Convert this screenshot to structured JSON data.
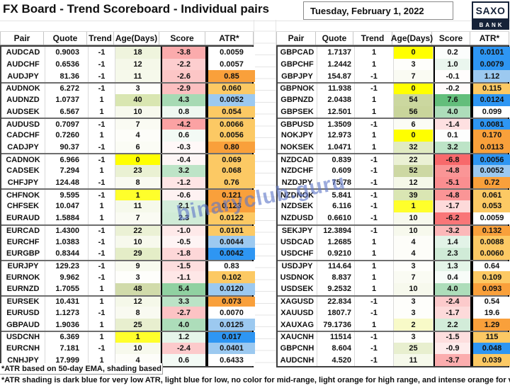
{
  "header": {
    "title": "FX Board - Trend Scoreboard - Individual pairs",
    "date": "Tuesday, February 1, 2022",
    "logo_top": "SAXO",
    "logo_bottom": "BANK"
  },
  "columns": [
    "Pair",
    "Quote",
    "Trend",
    "Age(Days)",
    "Score",
    "ATR*"
  ],
  "footnotes": {
    "line1": "*ATR based on 50-day EMA, shading based on co",
    "line2": "*ATR shading is dark blue for very low ATR, light blue for low, no color for mid-range, light orange for high range, and intense orange for very high"
  },
  "watermark": {
    "text": "binaryclub.guru",
    "color": "rgba(95,120,200,0.62)"
  },
  "colors": {
    "age_new_yellow": "#FFFF00",
    "atr_dark_blue": "#2E96F3",
    "atr_light_blue": "#9CC9F0",
    "atr_light_orange": "#FCC964",
    "atr_intense_orange": "#F9A03B",
    "score_strong_red": "#F8696B",
    "score_strong_green": "#63BE7B",
    "logo_navy": "#152238"
  },
  "tables": {
    "left": {
      "rows": [
        {
          "pair": "AUDCAD",
          "quote": "0.9003",
          "trend": "-1",
          "age": "18",
          "score": "-3.8",
          "atr": "0.0059",
          "age_bg": "#EFF4DD",
          "score_bg": "#FBABAC",
          "atr_bg": "#FFFFFF"
        },
        {
          "pair": "AUDCHF",
          "quote": "0.6536",
          "trend": "-1",
          "age": "12",
          "score": "-2.2",
          "atr": "0.0057",
          "age_bg": "#F5F8E9",
          "score_bg": "#FDCECF",
          "atr_bg": "#FFFFFF"
        },
        {
          "pair": "AUDJPY",
          "quote": "81.36",
          "trend": "-1",
          "age": "11",
          "score": "-2.6",
          "atr": "0.85",
          "age_bg": "#F6F9EB",
          "score_bg": "#FCC6C6",
          "atr_bg": "#F9A03B"
        },
        {
          "pair": "AUDNOK",
          "quote": "6.272",
          "trend": "-1",
          "age": "3",
          "score": "-2.9",
          "atr": "0.060",
          "age_bg": "#FEFEFB",
          "score_bg": "#FCBFC0",
          "atr_bg": "#FCC964"
        },
        {
          "pair": "AUDNZD",
          "quote": "1.0737",
          "trend": "1",
          "age": "40",
          "score": "4.3",
          "atr": "0.0052",
          "age_bg": "#D9E6B1",
          "score_bg": "#A7DAB4",
          "atr_bg": "#9CC9F0"
        },
        {
          "pair": "AUDSEK",
          "quote": "6.567",
          "trend": "1",
          "age": "10",
          "score": "0.8",
          "atr": "0.054",
          "age_bg": "#F7F9ED",
          "score_bg": "#EFF8F1",
          "atr_bg": "#FCC964"
        },
        {
          "pair": "AUDUSD",
          "quote": "0.7097",
          "trend": "-1",
          "age": "7",
          "score": "-4.2",
          "atr": "0.0066",
          "age_bg": "#FAFBF3",
          "score_bg": "#FBA2A3",
          "atr_bg": "#FCC964"
        },
        {
          "pair": "CADCHF",
          "quote": "0.7260",
          "trend": "1",
          "age": "4",
          "score": "0.6",
          "atr": "0.0056",
          "age_bg": "#FDFDF9",
          "score_bg": "#F3FAF5",
          "atr_bg": "#FCC964"
        },
        {
          "pair": "CADJPY",
          "quote": "90.37",
          "trend": "-1",
          "age": "6",
          "score": "-0.3",
          "atr": "0.80",
          "age_bg": "#FBFCF5",
          "score_bg": "#FFF8F8",
          "atr_bg": "#F9A03B"
        },
        {
          "pair": "CADNOK",
          "quote": "6.966",
          "trend": "-1",
          "age": "0",
          "score": "-0.4",
          "atr": "0.069",
          "age_bg": "#FFFF00",
          "score_bg": "#FEF6F6",
          "atr_bg": "#FCC964"
        },
        {
          "pair": "CADSEK",
          "quote": "7.294",
          "trend": "1",
          "age": "23",
          "score": "3.2",
          "atr": "0.068",
          "age_bg": "#EAF1D3",
          "score_bg": "#BDE4C7",
          "atr_bg": "#FCC964"
        },
        {
          "pair": "CHFJPY",
          "quote": "124.48",
          "trend": "-1",
          "age": "8",
          "score": "-1.2",
          "atr": "0.76",
          "age_bg": "#F9FAF1",
          "score_bg": "#FEE5E5",
          "atr_bg": "#FCC964"
        },
        {
          "pair": "CHFNOK",
          "quote": "9.595",
          "trend": "-1",
          "age": "1",
          "score": "-0.6",
          "atr": "0.121",
          "age_bg": "#FFFF2B",
          "score_bg": "#FEF2F2",
          "atr_bg": "#F9A03B"
        },
        {
          "pair": "CHFSEK",
          "quote": "10.047",
          "trend": "1",
          "age": "11",
          "score": "2.1",
          "atr": "0.123",
          "age_bg": "#F6F9EB",
          "score_bg": "#D4EDDB",
          "atr_bg": "#F9A03B"
        },
        {
          "pair": "EURAUD",
          "quote": "1.5884",
          "trend": "1",
          "age": "7",
          "score": "2.3",
          "atr": "0.0122",
          "age_bg": "#FAFBF3",
          "score_bg": "#D0EBD7",
          "atr_bg": "#FCC964"
        },
        {
          "pair": "EURCAD",
          "quote": "1.4300",
          "trend": "-1",
          "age": "22",
          "score": "-1.0",
          "atr": "0.0101",
          "age_bg": "#EBF1D5",
          "score_bg": "#FEE9E9",
          "atr_bg": "#FCC964"
        },
        {
          "pair": "EURCHF",
          "quote": "1.0383",
          "trend": "-1",
          "age": "10",
          "score": "-0.5",
          "atr": "0.0044",
          "age_bg": "#F7F9ED",
          "score_bg": "#FEF4F4",
          "atr_bg": "#9CC9F0"
        },
        {
          "pair": "EURGBP",
          "quote": "0.8344",
          "trend": "-1",
          "age": "29",
          "score": "-1.8",
          "atr": "0.0042",
          "age_bg": "#E4EDC7",
          "score_bg": "#FDD7D8",
          "atr_bg": "#2E96F3"
        },
        {
          "pair": "EURJPY",
          "quote": "129.23",
          "trend": "-1",
          "age": "9",
          "score": "-1.5",
          "atr": "0.83",
          "age_bg": "#F8FAEF",
          "score_bg": "#FDDEDE",
          "atr_bg": "#FFFFFF"
        },
        {
          "pair": "EURNOK",
          "quote": "9.962",
          "trend": "-1",
          "age": "3",
          "score": "-1.1",
          "atr": "0.102",
          "age_bg": "#FEFEFB",
          "score_bg": "#FEE7E7",
          "atr_bg": "#FCC964"
        },
        {
          "pair": "EURNZD",
          "quote": "1.7055",
          "trend": "1",
          "age": "48",
          "score": "5.4",
          "atr": "0.0120",
          "age_bg": "#D1DBAA",
          "score_bg": "#90D1A1",
          "atr_bg": "#9CC9F0"
        },
        {
          "pair": "EURSEK",
          "quote": "10.431",
          "trend": "1",
          "age": "12",
          "score": "3.3",
          "atr": "0.073",
          "age_bg": "#F5F8E9",
          "score_bg": "#BBE3C6",
          "atr_bg": "#F9A03B"
        },
        {
          "pair": "EURUSD",
          "quote": "1.1273",
          "trend": "-1",
          "age": "8",
          "score": "-2.7",
          "atr": "0.0070",
          "age_bg": "#F9FAF1",
          "score_bg": "#FCC3C4",
          "atr_bg": "#FFFFFF"
        },
        {
          "pair": "GBPAUD",
          "quote": "1.9036",
          "trend": "1",
          "age": "25",
          "score": "4.0",
          "atr": "0.0125",
          "age_bg": "#E8EFCF",
          "score_bg": "#ADDDBA",
          "atr_bg": "#9CC9F0"
        },
        {
          "pair": "USDCNH",
          "quote": "6.369",
          "trend": "1",
          "age": "1",
          "score": "1.2",
          "atr": "0.017",
          "age_bg": "#FFFF2B",
          "score_bg": "#E6F5EA",
          "atr_bg": "#2E96F3"
        },
        {
          "pair": "EURCNH",
          "quote": "7.181",
          "trend": "-1",
          "age": "10",
          "score": "-2.4",
          "atr": "0.0401",
          "age_bg": "#F7F9ED",
          "score_bg": "#FCCACB",
          "atr_bg": "#9CC9F0"
        },
        {
          "pair": "CNHJPY",
          "quote": "17.999",
          "trend": "1",
          "age": "4",
          "score": "0.6",
          "atr": "0.6433",
          "age_bg": "#FDFDF9",
          "score_bg": "#F3FAF5",
          "atr_bg": "#FFFFFF"
        }
      ]
    },
    "right": {
      "rows": [
        {
          "pair": "GBPCAD",
          "quote": "1.7137",
          "trend": "1",
          "age": "0",
          "score": "0.2",
          "atr": "0.0101",
          "age_bg": "#FFFF00",
          "score_bg": "#FBFDFC",
          "atr_bg": "#2E96F3"
        },
        {
          "pair": "GBPCHF",
          "quote": "1.2442",
          "trend": "1",
          "age": "3",
          "score": "1.0",
          "atr": "0.0079",
          "age_bg": "#FEFEFB",
          "score_bg": "#EAF6EE",
          "atr_bg": "#2E96F3"
        },
        {
          "pair": "GBPJPY",
          "quote": "154.87",
          "trend": "-1",
          "age": "7",
          "score": "-0.1",
          "atr": "1.12",
          "age_bg": "#FAFBF3",
          "score_bg": "#FFFDFD",
          "atr_bg": "#9CC9F0"
        },
        {
          "pair": "GBPNOK",
          "quote": "11.938",
          "trend": "-1",
          "age": "0",
          "score": "-0.2",
          "atr": "0.115",
          "age_bg": "#FFFF00",
          "score_bg": "#FFFBFB",
          "atr_bg": "#FCC964"
        },
        {
          "pair": "GBPNZD",
          "quote": "2.0438",
          "trend": "1",
          "age": "54",
          "score": "7.6",
          "atr": "0.0124",
          "age_bg": "#CBD79F",
          "score_bg": "#63BE7B",
          "atr_bg": "#2E96F3"
        },
        {
          "pair": "GBPSEK",
          "quote": "12.501",
          "trend": "1",
          "age": "56",
          "score": "4.0",
          "atr": "0.099",
          "age_bg": "#C9D59B",
          "score_bg": "#ADDDBA",
          "atr_bg": "#FFFFFF"
        },
        {
          "pair": "GBPUSD",
          "quote": "1.3509",
          "trend": "-1",
          "age": "6",
          "score": "-1.4",
          "atr": "0.0081",
          "age_bg": "#FBFCF5",
          "score_bg": "#FEE0E1",
          "atr_bg": "#2E96F3"
        },
        {
          "pair": "NOKJPY",
          "quote": "12.973",
          "trend": "1",
          "age": "0",
          "score": "0.1",
          "atr": "0.170",
          "age_bg": "#FFFF00",
          "score_bg": "#FDFEFD",
          "atr_bg": "#F9A03B"
        },
        {
          "pair": "NOKSEK",
          "quote": "1.0471",
          "trend": "1",
          "age": "32",
          "score": "3.2",
          "atr": "0.0113",
          "age_bg": "#E1EBC1",
          "score_bg": "#BDE4C7",
          "atr_bg": "#F9A03B"
        },
        {
          "pair": "NZDCAD",
          "quote": "0.839",
          "trend": "-1",
          "age": "22",
          "score": "-6.8",
          "atr": "0.0056",
          "age_bg": "#EBF1D5",
          "score_bg": "#F8696B",
          "atr_bg": "#2E96F3"
        },
        {
          "pair": "NZDCHF",
          "quote": "0.609",
          "trend": "-1",
          "age": "52",
          "score": "-4.8",
          "atr": "0.0052",
          "age_bg": "#CDD8A3",
          "score_bg": "#FA9596",
          "atr_bg": "#9CC9F0"
        },
        {
          "pair": "NZDJPY",
          "quote": "75.78",
          "trend": "-1",
          "age": "12",
          "score": "-5.1",
          "atr": "0.72",
          "age_bg": "#F5F8E9",
          "score_bg": "#FA8E90",
          "atr_bg": "#F9A03B"
        },
        {
          "pair": "NZDNOK",
          "quote": "5.841",
          "trend": "-1",
          "age": "39",
          "score": "-4.8",
          "atr": "0.061",
          "age_bg": "#DAE6B3",
          "score_bg": "#FA9596",
          "atr_bg": "#FCC964"
        },
        {
          "pair": "NZDSEK",
          "quote": "6.116",
          "trend": "-1",
          "age": "1",
          "score": "-1.7",
          "atr": "0.053",
          "age_bg": "#FFFF2B",
          "score_bg": "#FDDADA",
          "atr_bg": "#FCC964"
        },
        {
          "pair": "NZDUSD",
          "quote": "0.6610",
          "trend": "-1",
          "age": "10",
          "score": "-6.2",
          "atr": "0.0059",
          "age_bg": "#F7F9ED",
          "score_bg": "#F97678",
          "atr_bg": "#FFFFFF"
        },
        {
          "pair": "SEKJPY",
          "quote": "12.3894",
          "trend": "-1",
          "age": "10",
          "score": "-3.2",
          "atr": "0.132",
          "age_bg": "#F7F9ED",
          "score_bg": "#FCB8B9",
          "atr_bg": "#F9A03B"
        },
        {
          "pair": "USDCAD",
          "quote": "1.2685",
          "trend": "1",
          "age": "4",
          "score": "1.4",
          "atr": "0.0088",
          "age_bg": "#FDFDF9",
          "score_bg": "#E2F3E7",
          "atr_bg": "#FCC964"
        },
        {
          "pair": "USDCHF",
          "quote": "0.9210",
          "trend": "1",
          "age": "4",
          "score": "2.3",
          "atr": "0.0060",
          "age_bg": "#FDFDF9",
          "score_bg": "#D0EBD7",
          "atr_bg": "#FCC964"
        },
        {
          "pair": "USDJPY",
          "quote": "114.64",
          "trend": "1",
          "age": "3",
          "score": "1.3",
          "atr": "0.64",
          "age_bg": "#FEFEFB",
          "score_bg": "#E4F4E8",
          "atr_bg": "#FFFFFF"
        },
        {
          "pair": "USDNOK",
          "quote": "8.837",
          "trend": "1",
          "age": "7",
          "score": "0.4",
          "atr": "0.109",
          "age_bg": "#FAFBF3",
          "score_bg": "#F7FCF8",
          "atr_bg": "#FCC964"
        },
        {
          "pair": "USDSEK",
          "quote": "9.2532",
          "trend": "1",
          "age": "10",
          "score": "4.0",
          "atr": "0.093",
          "age_bg": "#F7F9ED",
          "score_bg": "#ADDDBA",
          "atr_bg": "#F9A03B"
        },
        {
          "pair": "XAGUSD",
          "quote": "22.834",
          "trend": "-1",
          "age": "3",
          "score": "-2.4",
          "atr": "0.54",
          "age_bg": "#FEFEFB",
          "score_bg": "#FCCACB",
          "atr_bg": "#FFFFFF"
        },
        {
          "pair": "XAUUSD",
          "quote": "1807.7",
          "trend": "-1",
          "age": "3",
          "score": "-1.7",
          "atr": "19.6",
          "age_bg": "#FEFEFB",
          "score_bg": "#FDDADA",
          "atr_bg": "#FFFFFF"
        },
        {
          "pair": "XAUXAG",
          "quote": "79.1736",
          "trend": "1",
          "age": "2",
          "score": "2.2",
          "atr": "1.29",
          "age_bg": "#F8FAC8",
          "score_bg": "#D2ECD9",
          "atr_bg": "#F9A03B"
        },
        {
          "pair": "XAUCNH",
          "quote": "11514",
          "trend": "-1",
          "age": "3",
          "score": "-1.5",
          "atr": "115",
          "age_bg": "#FEFEFB",
          "score_bg": "#FDDEDE",
          "atr_bg": "#FCC964"
        },
        {
          "pair": "GBPCNH",
          "quote": "8.604",
          "trend": "-1",
          "age": "25",
          "score": "-0.9",
          "atr": "0.048",
          "age_bg": "#E8EFCF",
          "score_bg": "#FEEBEB",
          "atr_bg": "#2E96F3"
        },
        {
          "pair": "AUDCNH",
          "quote": "4.520",
          "trend": "-1",
          "age": "11",
          "score": "-3.7",
          "atr": "0.039",
          "age_bg": "#F6F9EB",
          "score_bg": "#FBADAE",
          "atr_bg": "#FCC964"
        }
      ]
    }
  }
}
